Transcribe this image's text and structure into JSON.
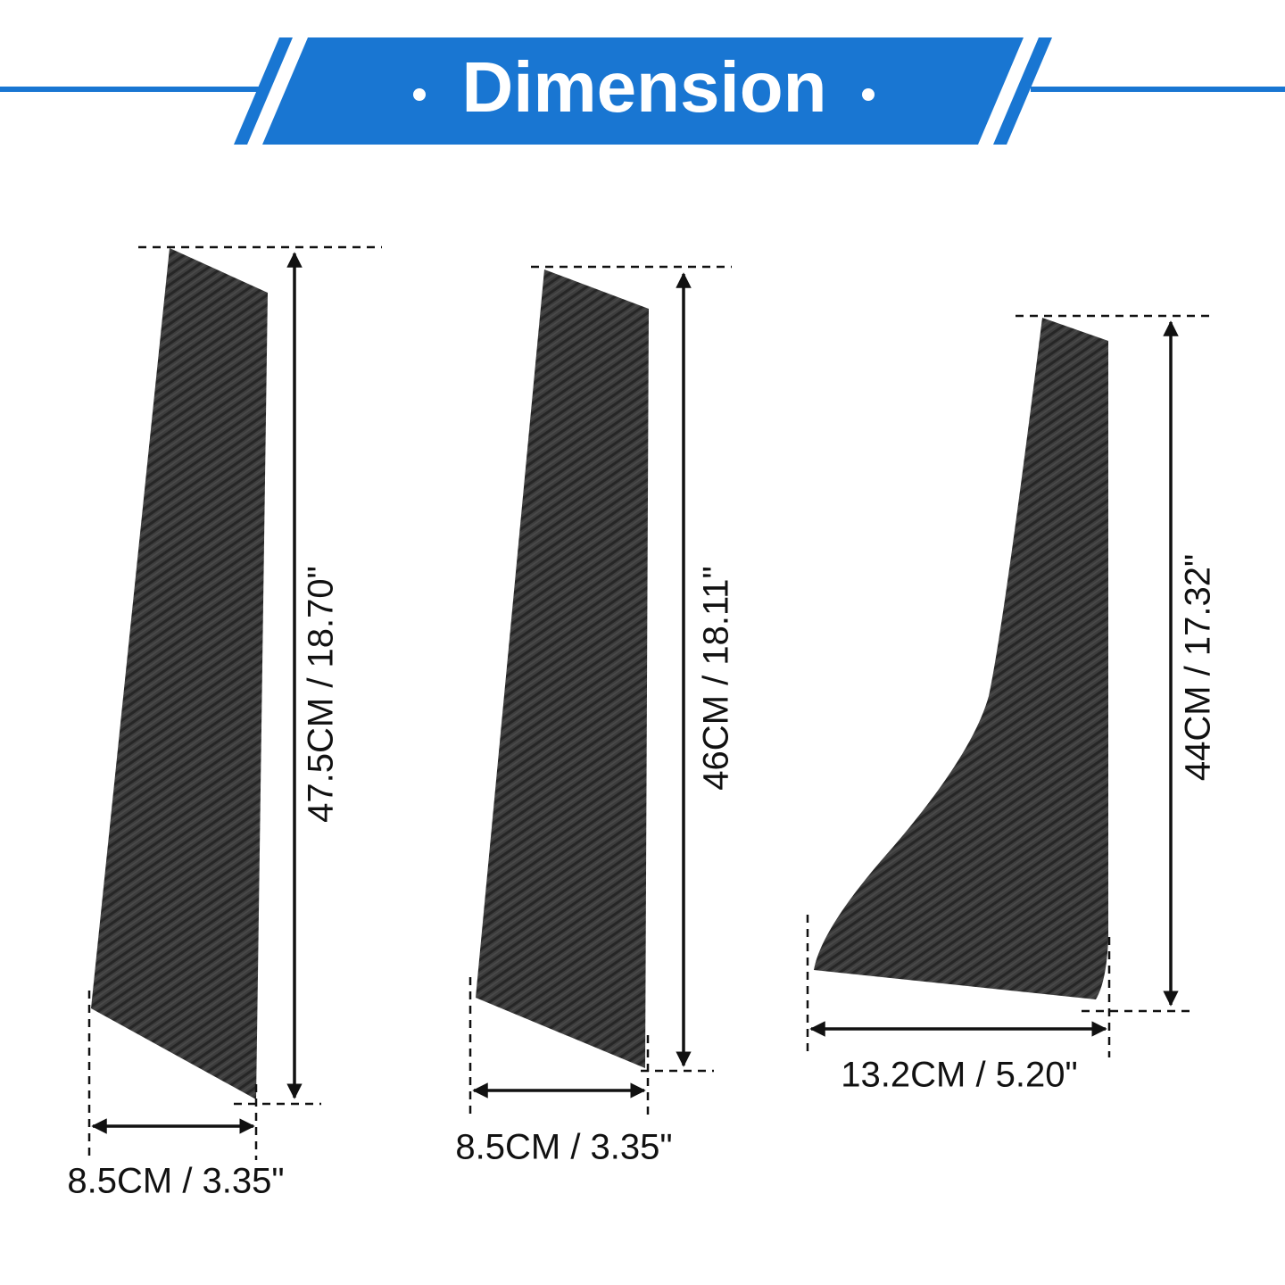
{
  "header": {
    "title": "Dimension"
  },
  "pieces": [
    {
      "height": "47.5CM / 18.70\"",
      "width": "8.5CM / 3.35\""
    },
    {
      "height": "46CM / 18.11\"",
      "width": "8.5CM / 3.35\""
    },
    {
      "height": "44CM / 17.32\"",
      "width": "13.2CM / 5.20\""
    }
  ]
}
